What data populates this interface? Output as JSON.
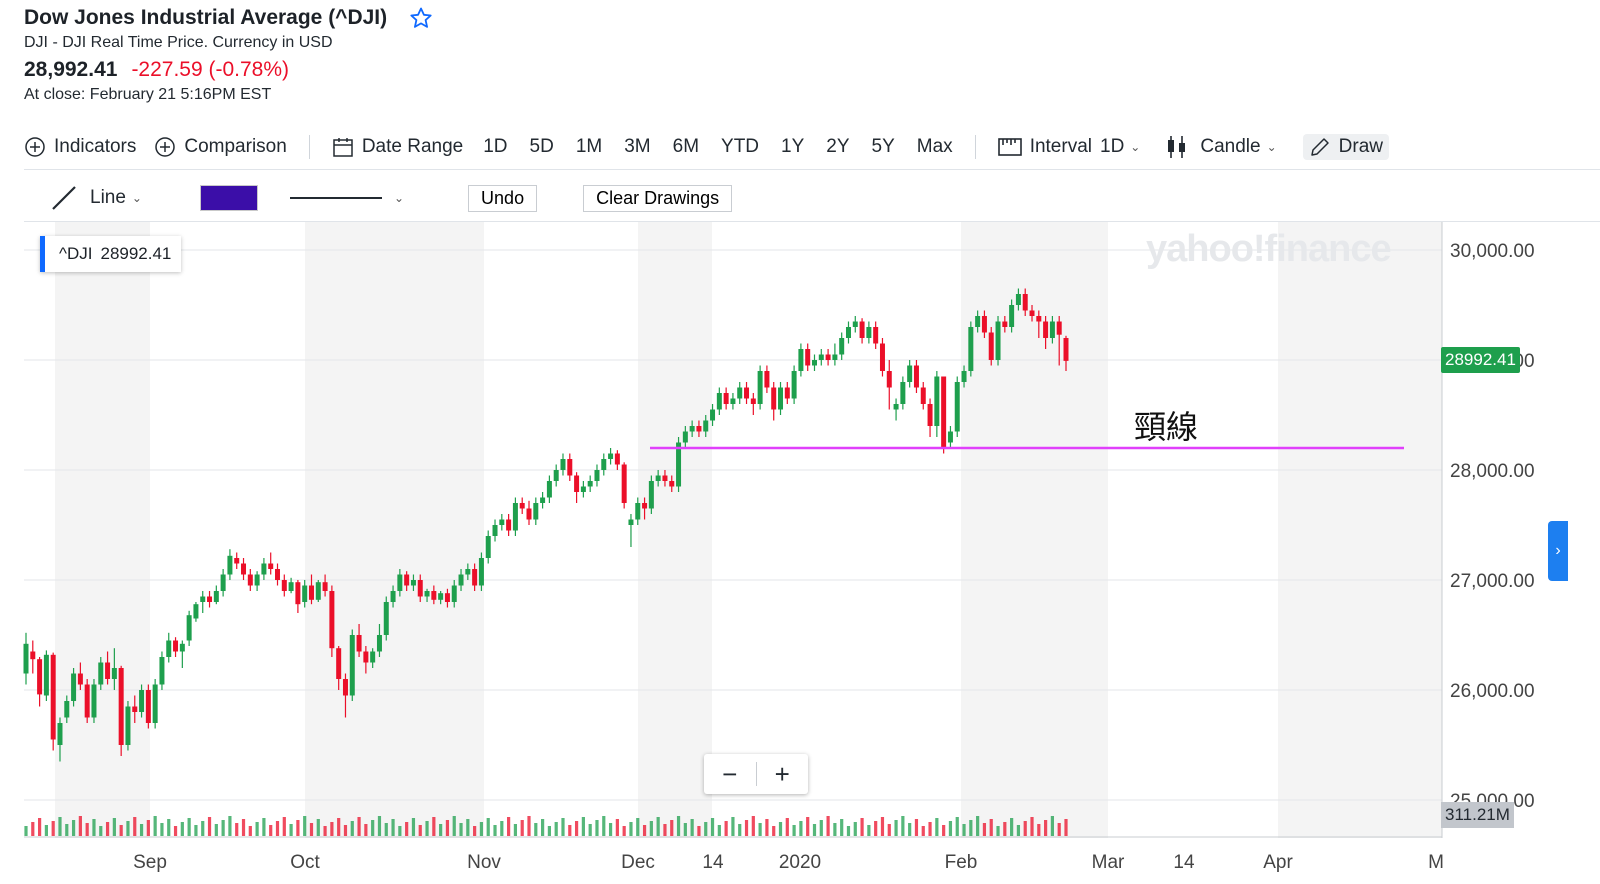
{
  "header": {
    "title": "Dow Jones Industrial Average (^DJI)",
    "subtitle": "DJI - DJI Real Time Price. Currency in USD",
    "price": "28,992.41",
    "change": "-227.59 (-0.78%)",
    "close_time": "At close: February 21 5:16PM EST"
  },
  "toolbar": {
    "indicators": "Indicators",
    "comparison": "Comparison",
    "date_range": "Date Range",
    "ranges": [
      "1D",
      "5D",
      "1M",
      "3M",
      "6M",
      "YTD",
      "1Y",
      "2Y",
      "5Y",
      "Max"
    ],
    "interval_label": "Interval",
    "interval_value": "1D",
    "chart_type": "Candle",
    "draw": "Draw"
  },
  "drawbar": {
    "tool": "Line",
    "color": "#3b0ea8",
    "undo": "Undo",
    "clear": "Clear Drawings"
  },
  "chart": {
    "legend_symbol": "^DJI",
    "legend_value": "28992.41",
    "watermark": "yahoo!finance",
    "current_price_label": "28992.41",
    "volume_label": "311.21M",
    "annotation": "頸線",
    "neckline_color": "#e040fb",
    "up_color": "#1e9f4d",
    "down_color": "#eb0f29"
  },
  "chart_data": {
    "type": "candlestick",
    "y_ticks": [
      "30,000.00",
      "29,000.00",
      "28,000.00",
      "27,000.00",
      "26,000.00",
      "25,000.00"
    ],
    "x_ticks": [
      "Sep",
      "Oct",
      "Nov",
      "Dec",
      "14",
      "2020",
      "Feb",
      "Mar",
      "14",
      "Apr",
      "M"
    ],
    "ylim": [
      24950,
      30200
    ],
    "neckline": 28200,
    "candles": [
      [
        26150,
        26420,
        26520,
        26050
      ],
      [
        26350,
        26280,
        26450,
        26150
      ],
      [
        26280,
        25960,
        26300,
        25850
      ],
      [
        25950,
        26320,
        26360,
        25900
      ],
      [
        26320,
        25550,
        26340,
        25450
      ],
      [
        25500,
        25700,
        25750,
        25350
      ],
      [
        25750,
        25900,
        25950,
        25700
      ],
      [
        25900,
        26150,
        26200,
        25850
      ],
      [
        26150,
        26050,
        26250,
        26000
      ],
      [
        26050,
        25750,
        26100,
        25700
      ],
      [
        25750,
        26050,
        26100,
        25700
      ],
      [
        26050,
        26250,
        26300,
        26000
      ],
      [
        26250,
        26100,
        26350,
        26050
      ],
      [
        26100,
        26200,
        26380,
        26000
      ],
      [
        26200,
        25500,
        26220,
        25400
      ],
      [
        25500,
        25850,
        25900,
        25450
      ],
      [
        25850,
        25800,
        25950,
        25700
      ],
      [
        25800,
        26000,
        26050,
        25750
      ],
      [
        26000,
        25700,
        26050,
        25650
      ],
      [
        25700,
        26050,
        26100,
        25650
      ],
      [
        26050,
        26300,
        26350,
        26000
      ],
      [
        26300,
        26450,
        26520,
        26250
      ],
      [
        26450,
        26350,
        26480,
        26300
      ],
      [
        26350,
        26420,
        26450,
        26200
      ],
      [
        26450,
        26680,
        26720,
        26400
      ],
      [
        26650,
        26780,
        26800,
        26620
      ],
      [
        26800,
        26850,
        26900,
        26700
      ],
      [
        26850,
        26800,
        26900,
        26750
      ],
      [
        26800,
        26900,
        26950,
        26780
      ],
      [
        26900,
        27050,
        27100,
        26850
      ],
      [
        27050,
        27220,
        27280,
        27000
      ],
      [
        27200,
        27150,
        27250,
        27100
      ],
      [
        27150,
        27050,
        27200,
        27000
      ],
      [
        27050,
        26950,
        27100,
        26900
      ],
      [
        26950,
        27050,
        27080,
        26900
      ],
      [
        27050,
        27150,
        27200,
        27000
      ],
      [
        27150,
        27100,
        27250,
        27050
      ],
      [
        27100,
        27000,
        27150,
        26950
      ],
      [
        27000,
        26900,
        27050,
        26850
      ],
      [
        26900,
        26980,
        27020,
        26880
      ],
      [
        26980,
        26780,
        27000,
        26700
      ],
      [
        26800,
        26950,
        27000,
        26750
      ],
      [
        26950,
        26820,
        27050,
        26780
      ],
      [
        26820,
        26980,
        27000,
        26800
      ],
      [
        26980,
        26900,
        27050,
        26850
      ],
      [
        26900,
        26380,
        26950,
        26300
      ],
      [
        26380,
        26100,
        26400,
        26000
      ],
      [
        26100,
        25950,
        26150,
        25750
      ],
      [
        25950,
        26500,
        26550,
        25900
      ],
      [
        26500,
        26350,
        26600,
        26300
      ],
      [
        26350,
        26250,
        26400,
        26150
      ],
      [
        26250,
        26350,
        26380,
        26200
      ],
      [
        26350,
        26500,
        26600,
        26300
      ],
      [
        26500,
        26800,
        26850,
        26450
      ],
      [
        26800,
        26900,
        26950,
        26750
      ],
      [
        26900,
        27050,
        27100,
        26850
      ],
      [
        27050,
        26950,
        27080,
        26900
      ],
      [
        26950,
        27000,
        27050,
        26900
      ],
      [
        27000,
        26850,
        27050,
        26800
      ],
      [
        26850,
        26900,
        26920,
        26800
      ],
      [
        26900,
        26820,
        26950,
        26780
      ],
      [
        26820,
        26880,
        26900,
        26780
      ],
      [
        26880,
        26800,
        26920,
        26750
      ],
      [
        26800,
        26950,
        27000,
        26750
      ],
      [
        26950,
        27050,
        27100,
        26900
      ],
      [
        27050,
        27100,
        27150,
        27000
      ],
      [
        27100,
        26950,
        27150,
        26900
      ],
      [
        26950,
        27200,
        27250,
        26900
      ],
      [
        27200,
        27400,
        27450,
        27150
      ],
      [
        27400,
        27500,
        27550,
        27350
      ],
      [
        27500,
        27550,
        27600,
        27450
      ],
      [
        27550,
        27450,
        27600,
        27400
      ],
      [
        27450,
        27700,
        27750,
        27400
      ],
      [
        27700,
        27650,
        27750,
        27600
      ],
      [
        27650,
        27550,
        27720,
        27500
      ],
      [
        27550,
        27700,
        27750,
        27500
      ],
      [
        27700,
        27750,
        27800,
        27650
      ],
      [
        27750,
        27900,
        27950,
        27700
      ],
      [
        27900,
        28000,
        28050,
        27850
      ],
      [
        28000,
        28100,
        28150,
        27950
      ],
      [
        28100,
        27950,
        28150,
        27900
      ],
      [
        27950,
        27800,
        27980,
        27700
      ],
      [
        27800,
        27850,
        27900,
        27750
      ],
      [
        27850,
        27900,
        27950,
        27800
      ],
      [
        27900,
        28000,
        28050,
        27850
      ],
      [
        28000,
        28100,
        28150,
        27950
      ],
      [
        28100,
        28150,
        28200,
        28050
      ],
      [
        28150,
        28050,
        28180,
        28000
      ],
      [
        28050,
        27700,
        28070,
        27650
      ],
      [
        27500,
        27550,
        27600,
        27300
      ],
      [
        27550,
        27700,
        27750,
        27500
      ],
      [
        27700,
        27650,
        27750,
        27550
      ],
      [
        27650,
        27900,
        27950,
        27600
      ],
      [
        27900,
        27950,
        28000,
        27850
      ],
      [
        27950,
        27900,
        28000,
        27850
      ],
      [
        27900,
        27850,
        27950,
        27800
      ],
      [
        27850,
        28250,
        28300,
        27800
      ],
      [
        28250,
        28350,
        28400,
        28200
      ],
      [
        28350,
        28400,
        28450,
        28300
      ],
      [
        28400,
        28350,
        28450,
        28300
      ],
      [
        28350,
        28450,
        28500,
        28300
      ],
      [
        28450,
        28550,
        28600,
        28400
      ],
      [
        28550,
        28700,
        28750,
        28500
      ],
      [
        28700,
        28600,
        28750,
        28550
      ],
      [
        28600,
        28650,
        28700,
        28550
      ],
      [
        28650,
        28750,
        28800,
        28600
      ],
      [
        28750,
        28650,
        28800,
        28600
      ],
      [
        28650,
        28600,
        28700,
        28500
      ],
      [
        28600,
        28900,
        28950,
        28550
      ],
      [
        28900,
        28750,
        28950,
        28700
      ],
      [
        28750,
        28550,
        28800,
        28450
      ],
      [
        28550,
        28750,
        28800,
        28500
      ],
      [
        28750,
        28650,
        28800,
        28600
      ],
      [
        28650,
        28900,
        28950,
        28600
      ],
      [
        28900,
        29100,
        29150,
        28850
      ],
      [
        29100,
        28950,
        29150,
        28900
      ],
      [
        28950,
        29000,
        29050,
        28900
      ],
      [
        29000,
        29050,
        29100,
        28950
      ],
      [
        29050,
        29000,
        29100,
        28950
      ],
      [
        29000,
        29050,
        29150,
        28950
      ],
      [
        29050,
        29200,
        29250,
        29000
      ],
      [
        29200,
        29300,
        29350,
        29150
      ],
      [
        29300,
        29350,
        29400,
        29250
      ],
      [
        29350,
        29200,
        29380,
        29150
      ],
      [
        29200,
        29300,
        29350,
        29150
      ],
      [
        29300,
        29150,
        29350,
        29100
      ],
      [
        29150,
        28900,
        29200,
        28850
      ],
      [
        28900,
        28750,
        29000,
        28550
      ],
      [
        28550,
        28600,
        28650,
        28450
      ],
      [
        28600,
        28800,
        28850,
        28550
      ],
      [
        28800,
        28950,
        29000,
        28750
      ],
      [
        28950,
        28750,
        29000,
        28700
      ],
      [
        28750,
        28600,
        28800,
        28550
      ],
      [
        28600,
        28400,
        28650,
        28300
      ],
      [
        28400,
        28850,
        28900,
        28300
      ],
      [
        28850,
        28200,
        28850,
        28150
      ],
      [
        28250,
        28350,
        28400,
        28200
      ],
      [
        28350,
        28800,
        28850,
        28300
      ],
      [
        28800,
        28900,
        28950,
        28750
      ],
      [
        28900,
        29300,
        29350,
        28850
      ],
      [
        29300,
        29400,
        29450,
        29250
      ],
      [
        29400,
        29250,
        29450,
        29200
      ],
      [
        29250,
        29000,
        29300,
        28950
      ],
      [
        29000,
        29350,
        29400,
        28950
      ],
      [
        29350,
        29300,
        29400,
        29250
      ],
      [
        29300,
        29500,
        29550,
        29250
      ],
      [
        29500,
        29600,
        29650,
        29450
      ],
      [
        29600,
        29450,
        29650,
        29400
      ],
      [
        29450,
        29400,
        29500,
        29350
      ],
      [
        29400,
        29350,
        29450,
        29200
      ],
      [
        29350,
        29200,
        29400,
        29100
      ],
      [
        29200,
        29350,
        29400,
        29150
      ],
      [
        29350,
        29230,
        29400,
        28950
      ],
      [
        29200,
        28992,
        29220,
        28900
      ]
    ]
  }
}
